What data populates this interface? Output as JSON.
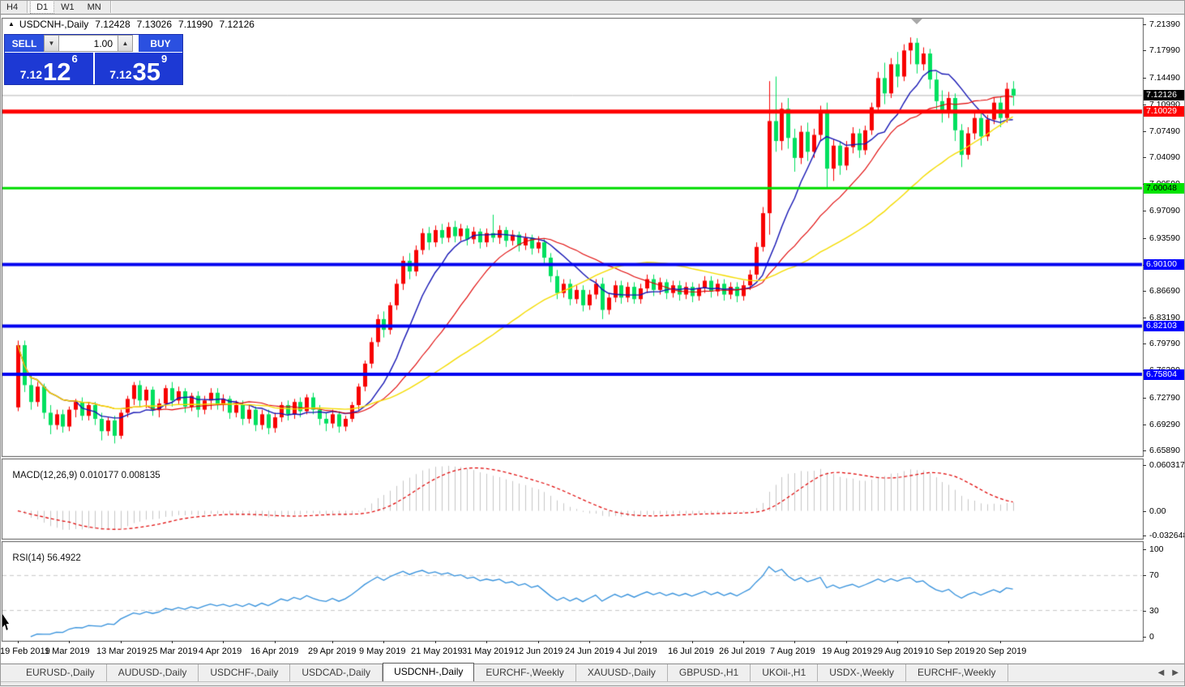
{
  "toolbar": {
    "timeframes": [
      {
        "label": "H4",
        "active": false
      },
      {
        "label": "D1",
        "active": true
      },
      {
        "label": "W1",
        "active": false
      },
      {
        "label": "MN",
        "active": false
      }
    ]
  },
  "chart_header": {
    "collapse_arrow": "▲",
    "title": "USDCNH-,Daily",
    "quote_open": "7.12428",
    "quote_high": "7.13026",
    "quote_low": "7.11990",
    "quote_close": "7.12126"
  },
  "trade_panel": {
    "sell_label": "SELL",
    "buy_label": "BUY",
    "volume_value": "1.00",
    "spin_down_icon": "▼",
    "spin_up_icon": "▲",
    "sell_price_prefix": "7.12",
    "sell_price_big": "12",
    "sell_price_sup": "6",
    "buy_price_prefix": "7.12",
    "buy_price_big": "35",
    "buy_price_sup": "9"
  },
  "price_axis": {
    "ticks": [
      "7.21390",
      "7.17990",
      "7.14490",
      "7.10990",
      "7.07490",
      "7.04090",
      "7.00590",
      "6.97090",
      "6.93590",
      "6.90090",
      "6.86690",
      "6.83190",
      "6.79790",
      "6.76290",
      "6.72790",
      "6.69290",
      "6.65890"
    ],
    "current_badge": {
      "label": "7.12126",
      "price": 7.12126,
      "bg": "#000000",
      "fg": "#ffffff"
    },
    "line_badges": [
      {
        "label": "7.10029",
        "price": 7.10029,
        "bg": "#ff0000",
        "fg": "#ffffff"
      },
      {
        "label": "7.00048",
        "price": 7.00048,
        "bg": "#00e400",
        "fg": "#000000"
      },
      {
        "label": "6.90100",
        "price": 6.901,
        "bg": "#0000ff",
        "fg": "#ffffff"
      },
      {
        "label": "6.82103",
        "price": 6.82103,
        "bg": "#0000ff",
        "fg": "#ffffff"
      },
      {
        "label": "6.75804",
        "price": 6.75804,
        "bg": "#0000ff",
        "fg": "#ffffff"
      }
    ]
  },
  "macd_panel": {
    "label": "MACD(12,26,9)",
    "main_value": "0.010177",
    "signal_value": "0.008135",
    "axis_labels": [
      {
        "text": "0.060317",
        "value": 0.060317
      },
      {
        "text": "0.00",
        "value": 0
      },
      {
        "text": "-0.032648",
        "value": -0.032648
      }
    ]
  },
  "rsi_panel": {
    "label": "RSI(14)",
    "value": "56.4922",
    "axis_labels": [
      {
        "text": "100",
        "value": 100
      },
      {
        "text": "70",
        "value": 70
      },
      {
        "text": "30",
        "value": 30
      },
      {
        "text": "0",
        "value": 0
      }
    ],
    "levels": [
      70,
      30
    ]
  },
  "date_axis": [
    {
      "text": "19 Feb 2019",
      "index": 0
    },
    {
      "text": "1 Mar 2019",
      "index": 8
    },
    {
      "text": "13 Mar 2019",
      "index": 16
    },
    {
      "text": "25 Mar 2019",
      "index": 24
    },
    {
      "text": "4 Apr 2019",
      "index": 32
    },
    {
      "text": "16 Apr 2019",
      "index": 40
    },
    {
      "text": "29 Apr 2019",
      "index": 49
    },
    {
      "text": "9 May 2019",
      "index": 57
    },
    {
      "text": "21 May 2019",
      "index": 65
    },
    {
      "text": "31 May 2019",
      "index": 73
    },
    {
      "text": "12 Jun 2019",
      "index": 81
    },
    {
      "text": "24 Jun 2019",
      "index": 89
    },
    {
      "text": "4 Jul 2019",
      "index": 97
    },
    {
      "text": "16 Jul 2019",
      "index": 105
    },
    {
      "text": "26 Jul 2019",
      "index": 113
    },
    {
      "text": "7 Aug 2019",
      "index": 121
    },
    {
      "text": "19 Aug 2019",
      "index": 129
    },
    {
      "text": "29 Aug 2019",
      "index": 137
    },
    {
      "text": "10 Sep 2019",
      "index": 145
    },
    {
      "text": "20 Sep 2019",
      "index": 153
    }
  ],
  "tab_bar": {
    "tabs": [
      {
        "label": "EURUSD-,Daily",
        "active": false
      },
      {
        "label": "AUDUSD-,Daily",
        "active": false
      },
      {
        "label": "USDCHF-,Daily",
        "active": false
      },
      {
        "label": "USDCAD-,Daily",
        "active": false
      },
      {
        "label": "USDCNH-,Daily",
        "active": true
      },
      {
        "label": "EURCHF-,Weekly",
        "active": false
      },
      {
        "label": "XAUUSD-,Daily",
        "active": false
      },
      {
        "label": "GBPUSD-,H1",
        "active": false
      },
      {
        "label": "UKOil-,H1",
        "active": false
      },
      {
        "label": "USDX-,Weekly",
        "active": false
      },
      {
        "label": "EURCHF-,Weekly",
        "active": false
      }
    ],
    "scroll_left_icon": "◀",
    "scroll_right_icon": "▶"
  },
  "chart_data": {
    "type": "candlestick",
    "symbol": "USDCNH-",
    "timeframe": "Daily",
    "title": "USDCNH-,Daily",
    "ylim": [
      6.6515,
      7.2225
    ],
    "bull_color": "#f80000",
    "bear_color": "#00e05f",
    "current_price": 7.12126,
    "current_price_line_color": "#b4b4b4",
    "horizontal_lines": [
      {
        "price": 7.10029,
        "color": "#ff0000",
        "thickness": 5
      },
      {
        "price": 7.00048,
        "color": "#00dc00",
        "thickness": 3
      },
      {
        "price": 6.901,
        "color": "#0000f0",
        "thickness": 4
      },
      {
        "price": 6.82103,
        "color": "#0000f0",
        "thickness": 4
      },
      {
        "price": 6.75804,
        "color": "#0000f0",
        "thickness": 4
      }
    ],
    "moving_averages": [
      {
        "period": 10,
        "color": "#1414b4",
        "width": 1.4
      },
      {
        "period": 21,
        "color": "#e00000",
        "width": 1.1
      },
      {
        "period": 40,
        "color": "#f5dc00",
        "width": 1.4
      }
    ],
    "macd": {
      "fast": 12,
      "slow": 26,
      "signal": 9,
      "hist_color": "#c6c6c6",
      "signal_color": "#e00000",
      "ylim": [
        -0.0368,
        0.069
      ],
      "current_main": 0.010177,
      "current_signal": 0.008135
    },
    "rsi": {
      "period": 14,
      "color": "#3390dc",
      "levels_color": "#c8c8c8",
      "ylim": [
        -4.7,
        109.3
      ],
      "current": 56.4922
    },
    "candles": [
      [
        6.715,
        6.802,
        6.71,
        6.796
      ],
      [
        6.796,
        6.802,
        6.735,
        6.744
      ],
      [
        6.744,
        6.756,
        6.712,
        6.722
      ],
      [
        6.722,
        6.748,
        6.716,
        6.742
      ],
      [
        6.742,
        6.746,
        6.7,
        6.708
      ],
      [
        6.708,
        6.718,
        6.68,
        6.692
      ],
      [
        6.692,
        6.712,
        6.686,
        6.706
      ],
      [
        6.706,
        6.712,
        6.682,
        6.69
      ],
      [
        6.69,
        6.716,
        6.684,
        6.712
      ],
      [
        6.712,
        6.726,
        6.702,
        6.722
      ],
      [
        6.722,
        6.728,
        6.698,
        6.704
      ],
      [
        6.704,
        6.722,
        6.698,
        6.718
      ],
      [
        6.718,
        6.722,
        6.692,
        6.7
      ],
      [
        6.7,
        6.708,
        6.672,
        6.684
      ],
      [
        6.684,
        6.702,
        6.678,
        6.698
      ],
      [
        6.698,
        6.704,
        6.668,
        6.678
      ],
      [
        6.678,
        6.712,
        6.674,
        6.708
      ],
      [
        6.708,
        6.73,
        6.702,
        6.726
      ],
      [
        6.726,
        6.748,
        6.718,
        6.744
      ],
      [
        6.744,
        6.75,
        6.716,
        6.724
      ],
      [
        6.724,
        6.742,
        6.714,
        6.738
      ],
      [
        6.738,
        6.742,
        6.704,
        6.712
      ],
      [
        6.712,
        6.726,
        6.702,
        6.72
      ],
      [
        6.72,
        6.744,
        6.714,
        6.74
      ],
      [
        6.74,
        6.748,
        6.716,
        6.724
      ],
      [
        6.724,
        6.742,
        6.718,
        6.736
      ],
      [
        6.736,
        6.74,
        6.708,
        6.716
      ],
      [
        6.716,
        6.734,
        6.71,
        6.73
      ],
      [
        6.73,
        6.736,
        6.702,
        6.712
      ],
      [
        6.712,
        6.73,
        6.706,
        6.724
      ],
      [
        6.724,
        6.74,
        6.712,
        6.734
      ],
      [
        6.734,
        6.74,
        6.712,
        6.718
      ],
      [
        6.718,
        6.732,
        6.71,
        6.726
      ],
      [
        6.726,
        6.73,
        6.7,
        6.708
      ],
      [
        6.708,
        6.724,
        6.702,
        6.718
      ],
      [
        6.718,
        6.724,
        6.692,
        6.7
      ],
      [
        6.7,
        6.718,
        6.694,
        6.712
      ],
      [
        6.712,
        6.716,
        6.684,
        6.692
      ],
      [
        6.692,
        6.712,
        6.686,
        6.706
      ],
      [
        6.706,
        6.712,
        6.68,
        6.688
      ],
      [
        6.688,
        6.708,
        6.682,
        6.702
      ],
      [
        6.702,
        6.722,
        6.696,
        6.718
      ],
      [
        6.718,
        6.724,
        6.698,
        6.706
      ],
      [
        6.706,
        6.726,
        6.7,
        6.722
      ],
      [
        6.722,
        6.728,
        6.702,
        6.71
      ],
      [
        6.71,
        6.732,
        6.706,
        6.728
      ],
      [
        6.728,
        6.734,
        6.706,
        6.712
      ],
      [
        6.712,
        6.718,
        6.692,
        6.7
      ],
      [
        6.7,
        6.708,
        6.684,
        6.694
      ],
      [
        6.694,
        6.712,
        6.688,
        6.706
      ],
      [
        6.706,
        6.71,
        6.682,
        6.69
      ],
      [
        6.69,
        6.704,
        6.684,
        6.7
      ],
      [
        6.7,
        6.722,
        6.696,
        6.718
      ],
      [
        6.718,
        6.746,
        6.712,
        6.742
      ],
      [
        6.742,
        6.776,
        6.736,
        6.772
      ],
      [
        6.772,
        6.806,
        6.766,
        6.8
      ],
      [
        6.8,
        6.836,
        6.794,
        6.83
      ],
      [
        6.83,
        6.84,
        6.806,
        6.816
      ],
      [
        6.816,
        6.852,
        6.81,
        6.848
      ],
      [
        6.848,
        6.882,
        6.842,
        6.876
      ],
      [
        6.876,
        6.912,
        6.868,
        6.906
      ],
      [
        6.906,
        6.916,
        6.882,
        6.892
      ],
      [
        6.892,
        6.926,
        6.886,
        6.92
      ],
      [
        6.92,
        6.948,
        6.914,
        6.942
      ],
      [
        6.942,
        6.95,
        6.92,
        6.93
      ],
      [
        6.93,
        6.952,
        6.924,
        6.946
      ],
      [
        6.946,
        6.954,
        6.928,
        6.936
      ],
      [
        6.936,
        6.956,
        6.93,
        6.95
      ],
      [
        6.95,
        6.958,
        6.93,
        6.938
      ],
      [
        6.938,
        6.954,
        6.932,
        6.948
      ],
      [
        6.948,
        6.952,
        6.926,
        6.934
      ],
      [
        6.934,
        6.95,
        6.928,
        6.944
      ],
      [
        6.944,
        6.948,
        6.922,
        6.93
      ],
      [
        6.93,
        6.948,
        6.924,
        6.942
      ],
      [
        6.942,
        6.966,
        6.93,
        6.936
      ],
      [
        6.936,
        6.952,
        6.928,
        6.946
      ],
      [
        6.946,
        6.95,
        6.924,
        6.932
      ],
      [
        6.932,
        6.946,
        6.926,
        6.94
      ],
      [
        6.94,
        6.944,
        6.918,
        6.926
      ],
      [
        6.926,
        6.942,
        6.92,
        6.936
      ],
      [
        6.936,
        6.94,
        6.914,
        6.922
      ],
      [
        6.922,
        6.938,
        6.916,
        6.93
      ],
      [
        6.93,
        6.934,
        6.902,
        6.91
      ],
      [
        6.91,
        6.916,
        6.878,
        6.886
      ],
      [
        6.886,
        6.894,
        6.856,
        6.864
      ],
      [
        6.864,
        6.882,
        6.858,
        6.876
      ],
      [
        6.876,
        6.882,
        6.848,
        6.856
      ],
      [
        6.856,
        6.874,
        6.85,
        6.868
      ],
      [
        6.868,
        6.874,
        6.84,
        6.848
      ],
      [
        6.848,
        6.868,
        6.842,
        6.862
      ],
      [
        6.862,
        6.882,
        6.856,
        6.876
      ],
      [
        6.876,
        6.884,
        6.83,
        6.842
      ],
      [
        6.842,
        6.864,
        6.836,
        6.858
      ],
      [
        6.858,
        6.88,
        6.852,
        6.874
      ],
      [
        6.874,
        6.88,
        6.85,
        6.858
      ],
      [
        6.858,
        6.878,
        6.852,
        6.872
      ],
      [
        6.872,
        6.878,
        6.85,
        6.856
      ],
      [
        6.856,
        6.876,
        6.85,
        6.87
      ],
      [
        6.87,
        6.888,
        6.864,
        6.882
      ],
      [
        6.882,
        6.888,
        6.86,
        6.868
      ],
      [
        6.868,
        6.884,
        6.862,
        6.878
      ],
      [
        6.878,
        6.882,
        6.856,
        6.864
      ],
      [
        6.864,
        6.88,
        6.858,
        6.874
      ],
      [
        6.874,
        6.88,
        6.854,
        6.862
      ],
      [
        6.862,
        6.878,
        6.856,
        6.872
      ],
      [
        6.872,
        6.878,
        6.852,
        6.86
      ],
      [
        6.86,
        6.876,
        6.854,
        6.87
      ],
      [
        6.87,
        6.886,
        6.864,
        6.88
      ],
      [
        6.88,
        6.886,
        6.858,
        6.866
      ],
      [
        6.866,
        6.882,
        6.86,
        6.876
      ],
      [
        6.876,
        6.882,
        6.854,
        6.862
      ],
      [
        6.862,
        6.878,
        6.856,
        6.872
      ],
      [
        6.872,
        6.878,
        6.852,
        6.86
      ],
      [
        6.86,
        6.88,
        6.854,
        6.874
      ],
      [
        6.874,
        6.894,
        6.868,
        6.888
      ],
      [
        6.888,
        6.93,
        6.882,
        6.924
      ],
      [
        6.924,
        6.976,
        6.918,
        6.968
      ],
      [
        6.968,
        7.14,
        6.94,
        7.088
      ],
      [
        7.088,
        7.146,
        7.048,
        7.062
      ],
      [
        7.062,
        7.112,
        7.05,
        7.104
      ],
      [
        7.104,
        7.118,
        7.052,
        7.066
      ],
      [
        7.066,
        7.078,
        7.022,
        7.04
      ],
      [
        7.04,
        7.082,
        7.032,
        7.074
      ],
      [
        7.074,
        7.086,
        7.036,
        7.048
      ],
      [
        7.048,
        7.078,
        7.04,
        7.07
      ],
      [
        7.07,
        7.108,
        7.062,
        7.1
      ],
      [
        7.1,
        7.112,
        7.0,
        7.026
      ],
      [
        7.026,
        7.064,
        7.01,
        7.056
      ],
      [
        7.056,
        7.062,
        7.018,
        7.03
      ],
      [
        7.03,
        7.062,
        7.024,
        7.054
      ],
      [
        7.054,
        7.08,
        7.046,
        7.072
      ],
      [
        7.072,
        7.078,
        7.04,
        7.05
      ],
      [
        7.05,
        7.082,
        7.044,
        7.076
      ],
      [
        7.076,
        7.112,
        7.07,
        7.106
      ],
      [
        7.106,
        7.152,
        7.098,
        7.144
      ],
      [
        7.144,
        7.164,
        7.11,
        7.124
      ],
      [
        7.124,
        7.17,
        7.118,
        7.162
      ],
      [
        7.162,
        7.178,
        7.132,
        7.146
      ],
      [
        7.146,
        7.188,
        7.14,
        7.18
      ],
      [
        7.18,
        7.197,
        7.162,
        7.19
      ],
      [
        7.19,
        7.196,
        7.15,
        7.162
      ],
      [
        7.162,
        7.184,
        7.154,
        7.176
      ],
      [
        7.176,
        7.182,
        7.13,
        7.142
      ],
      [
        7.142,
        7.152,
        7.102,
        7.114
      ],
      [
        7.114,
        7.128,
        7.086,
        7.098
      ],
      [
        7.098,
        7.126,
        7.092,
        7.118
      ],
      [
        7.118,
        7.124,
        7.062,
        7.076
      ],
      [
        7.076,
        7.084,
        7.028,
        7.044
      ],
      [
        7.044,
        7.08,
        7.038,
        7.072
      ],
      [
        7.072,
        7.1,
        7.064,
        7.092
      ],
      [
        7.092,
        7.098,
        7.056,
        7.068
      ],
      [
        7.068,
        7.096,
        7.062,
        7.09
      ],
      [
        7.09,
        7.118,
        7.084,
        7.112
      ],
      [
        7.112,
        7.12,
        7.08,
        7.092
      ],
      [
        7.092,
        7.138,
        7.086,
        7.13
      ],
      [
        7.13,
        7.14,
        7.108,
        7.12126
      ]
    ]
  }
}
